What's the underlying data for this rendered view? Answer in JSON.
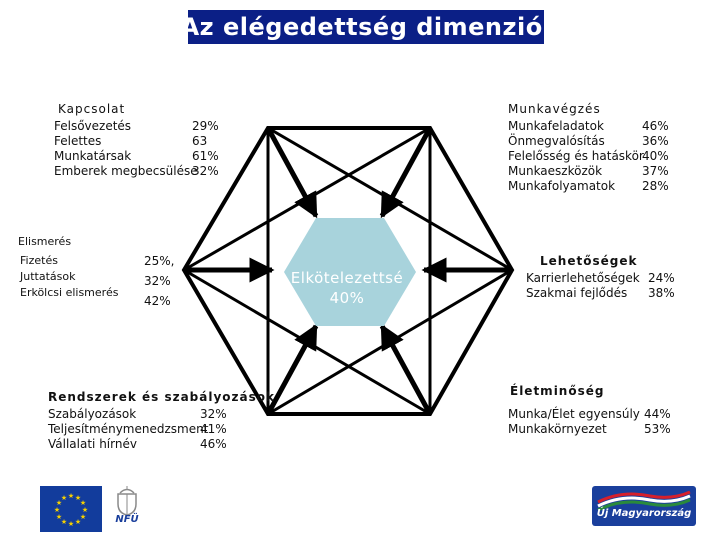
{
  "title": "Az elégedettség dimenziói",
  "center": {
    "label": "Elkötelezettsé",
    "value": "40%"
  },
  "groups": {
    "kapcsolat": {
      "title": "Kapcsolat",
      "items": [
        {
          "label": "Felsővezetés",
          "value": "29%"
        },
        {
          "label": "Felettes",
          "value": "63"
        },
        {
          "label": "Munkatársak",
          "value": "61%"
        },
        {
          "label": "Emberek megbecsülése",
          "value": "32%"
        }
      ]
    },
    "munkavegzes": {
      "title": "Munkavégzés",
      "items": [
        {
          "label": "Munkafeladatok",
          "value": "46%"
        },
        {
          "label": "Önmegvalósítás",
          "value": "36%"
        },
        {
          "label": "Felelősség és hatáskör",
          "value": "40%"
        },
        {
          "label": "Munkaeszközök",
          "value": "37%"
        },
        {
          "label": "Munkafolyamatok",
          "value": "28%"
        }
      ]
    },
    "elismeres": {
      "title": "Elismerés",
      "items": [
        {
          "label": "Fizetés",
          "value": "25%,"
        },
        {
          "label": "Juttatások",
          "value": "32%"
        },
        {
          "label": "Erkölcsi elismerés",
          "value": "42%"
        }
      ]
    },
    "lehetosegek": {
      "title": "Lehetőségek",
      "items": [
        {
          "label": "Karrierlehetőségek",
          "value": "24%"
        },
        {
          "label": "Szakmai fejlődés",
          "value": "38%"
        }
      ]
    },
    "rendszerek": {
      "title": "Rendszerek és szabályozások",
      "items": [
        {
          "label": "Szabályozások",
          "value": "32%"
        },
        {
          "label": "Teljesítménymenedzsment",
          "value": "41%"
        },
        {
          "label": "Vállalati hírnév",
          "value": "46%"
        }
      ]
    },
    "eletminoseg": {
      "title": "Életminőség",
      "items": [
        {
          "label": "Munka/Élet egyensúly",
          "value": "44%"
        },
        {
          "label": "Munkakörnyezet",
          "value": "53%"
        }
      ]
    }
  },
  "logos": {
    "nfu": "NFÜ",
    "uj_magyarorszag": "Új Magyarország"
  },
  "colors": {
    "title_bg": "#0b1f86",
    "center_fill": "#a8d3dc",
    "eu_blue": "#123c9c",
    "star": "#f5d000"
  }
}
